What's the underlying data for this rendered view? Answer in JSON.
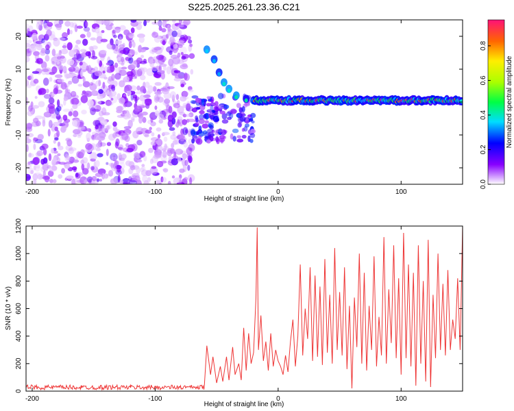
{
  "title": "S225.2025.261.23.36.C21",
  "chart_data": [
    {
      "type": "heatmap",
      "title": "S225.2025.261.23.36.C21",
      "xlabel": "Height of straight line (km)",
      "ylabel": "Frequency (Hz)",
      "xlim": [
        -205,
        150
      ],
      "ylim": [
        -25,
        25
      ],
      "xticks": [
        -200,
        -100,
        0,
        100
      ],
      "yticks": [
        -20,
        -10,
        0,
        10,
        20
      ],
      "description_of_signal": {
        "noise_region_x": [
          -205,
          -70
        ],
        "transition_region_x": [
          -70,
          -20
        ],
        "carrier_region_x": [
          -20,
          150
        ],
        "carrier_frequency_hz": 0.5,
        "doppler_trace": [
          {
            "x": -58,
            "y": 16
          },
          {
            "x": -52,
            "y": 13
          },
          {
            "x": -48,
            "y": 9
          },
          {
            "x": -44,
            "y": 6
          },
          {
            "x": -40,
            "y": 4
          },
          {
            "x": -34,
            "y": 2
          },
          {
            "x": -26,
            "y": 1
          },
          {
            "x": -20,
            "y": 0.5
          }
        ]
      },
      "colorbar": {
        "label": "Normalized spectral amplitude",
        "range": [
          0.0,
          0.95
        ],
        "ticks": [
          0.0,
          0.2,
          0.4,
          0.6,
          0.8
        ],
        "tick_labels": [
          "0.0",
          "0.2",
          "0.4",
          "0.6",
          "0.8"
        ]
      }
    },
    {
      "type": "line",
      "xlabel": "Height of straight line (km)",
      "ylabel": "SNR (10 * v/v)",
      "xlim": [
        -205,
        150
      ],
      "ylim": [
        0,
        1200
      ],
      "xticks": [
        -200,
        -100,
        0,
        100
      ],
      "yticks": [
        0,
        200,
        400,
        600,
        800,
        1000,
        1200
      ],
      "color": "#ee3333",
      "series": [
        {
          "name": "SNR",
          "points": [
            [
              -205,
              25
            ],
            [
              -180,
              28
            ],
            [
              -160,
              22
            ],
            [
              -140,
              30
            ],
            [
              -120,
              25
            ],
            [
              -100,
              28
            ],
            [
              -80,
              26
            ],
            [
              -70,
              28
            ],
            [
              -60,
              40
            ],
            [
              -58,
              330
            ],
            [
              -55,
              120
            ],
            [
              -53,
              250
            ],
            [
              -50,
              60
            ],
            [
              -47,
              180
            ],
            [
              -45,
              70
            ],
            [
              -42,
              250
            ],
            [
              -40,
              80
            ],
            [
              -37,
              320
            ],
            [
              -35,
              120
            ],
            [
              -32,
              200
            ],
            [
              -30,
              80
            ],
            [
              -28,
              460
            ],
            [
              -26,
              150
            ],
            [
              -24,
              420
            ],
            [
              -22,
              200
            ],
            [
              -20,
              280
            ],
            [
              -18,
              680
            ],
            [
              -17,
              1190
            ],
            [
              -16,
              300
            ],
            [
              -14,
              550
            ],
            [
              -12,
              220
            ],
            [
              -10,
              360
            ],
            [
              -8,
              150
            ],
            [
              -6,
              420
            ],
            [
              -4,
              180
            ],
            [
              -2,
              300
            ],
            [
              0,
              220
            ],
            [
              2,
              180
            ],
            [
              4,
              120
            ],
            [
              6,
              260
            ],
            [
              8,
              140
            ],
            [
              10,
              360
            ],
            [
              12,
              520
            ],
            [
              14,
              180
            ],
            [
              16,
              400
            ],
            [
              18,
              920
            ],
            [
              20,
              260
            ],
            [
              22,
              600
            ],
            [
              24,
              380
            ],
            [
              26,
              900
            ],
            [
              28,
              220
            ],
            [
              30,
              840
            ],
            [
              32,
              250
            ],
            [
              34,
              760
            ],
            [
              36,
              190
            ],
            [
              38,
              960
            ],
            [
              40,
              280
            ],
            [
              42,
              700
            ],
            [
              44,
              200
            ],
            [
              46,
              1040
            ],
            [
              48,
              300
            ],
            [
              50,
              720
            ],
            [
              52,
              260
            ],
            [
              54,
              900
            ],
            [
              56,
              160
            ],
            [
              58,
              620
            ],
            [
              60,
              20
            ],
            [
              62,
              680
            ],
            [
              64,
              320
            ],
            [
              66,
              1000
            ],
            [
              68,
              200
            ],
            [
              70,
              860
            ],
            [
              72,
              150
            ],
            [
              74,
              620
            ],
            [
              76,
              300
            ],
            [
              78,
              980
            ],
            [
              80,
              180
            ],
            [
              82,
              540
            ],
            [
              84,
              260
            ],
            [
              86,
              1120
            ],
            [
              88,
              200
            ],
            [
              90,
              740
            ],
            [
              92,
              350
            ],
            [
              94,
              1060
            ],
            [
              96,
              240
            ],
            [
              98,
              820
            ],
            [
              100,
              120
            ],
            [
              102,
              1150
            ],
            [
              104,
              240
            ],
            [
              106,
              920
            ],
            [
              108,
              180
            ],
            [
              110,
              860
            ],
            [
              112,
              40
            ],
            [
              114,
              1060
            ],
            [
              116,
              200
            ],
            [
              118,
              800
            ],
            [
              120,
              70
            ],
            [
              122,
              1100
            ],
            [
              124,
              30
            ],
            [
              126,
              700
            ],
            [
              128,
              240
            ],
            [
              130,
              1000
            ],
            [
              132,
              300
            ],
            [
              134,
              780
            ],
            [
              136,
              260
            ],
            [
              138,
              880
            ],
            [
              140,
              300
            ],
            [
              142,
              520
            ],
            [
              144,
              380
            ],
            [
              146,
              820
            ],
            [
              148,
              300
            ],
            [
              150,
              1200
            ]
          ]
        }
      ]
    }
  ]
}
